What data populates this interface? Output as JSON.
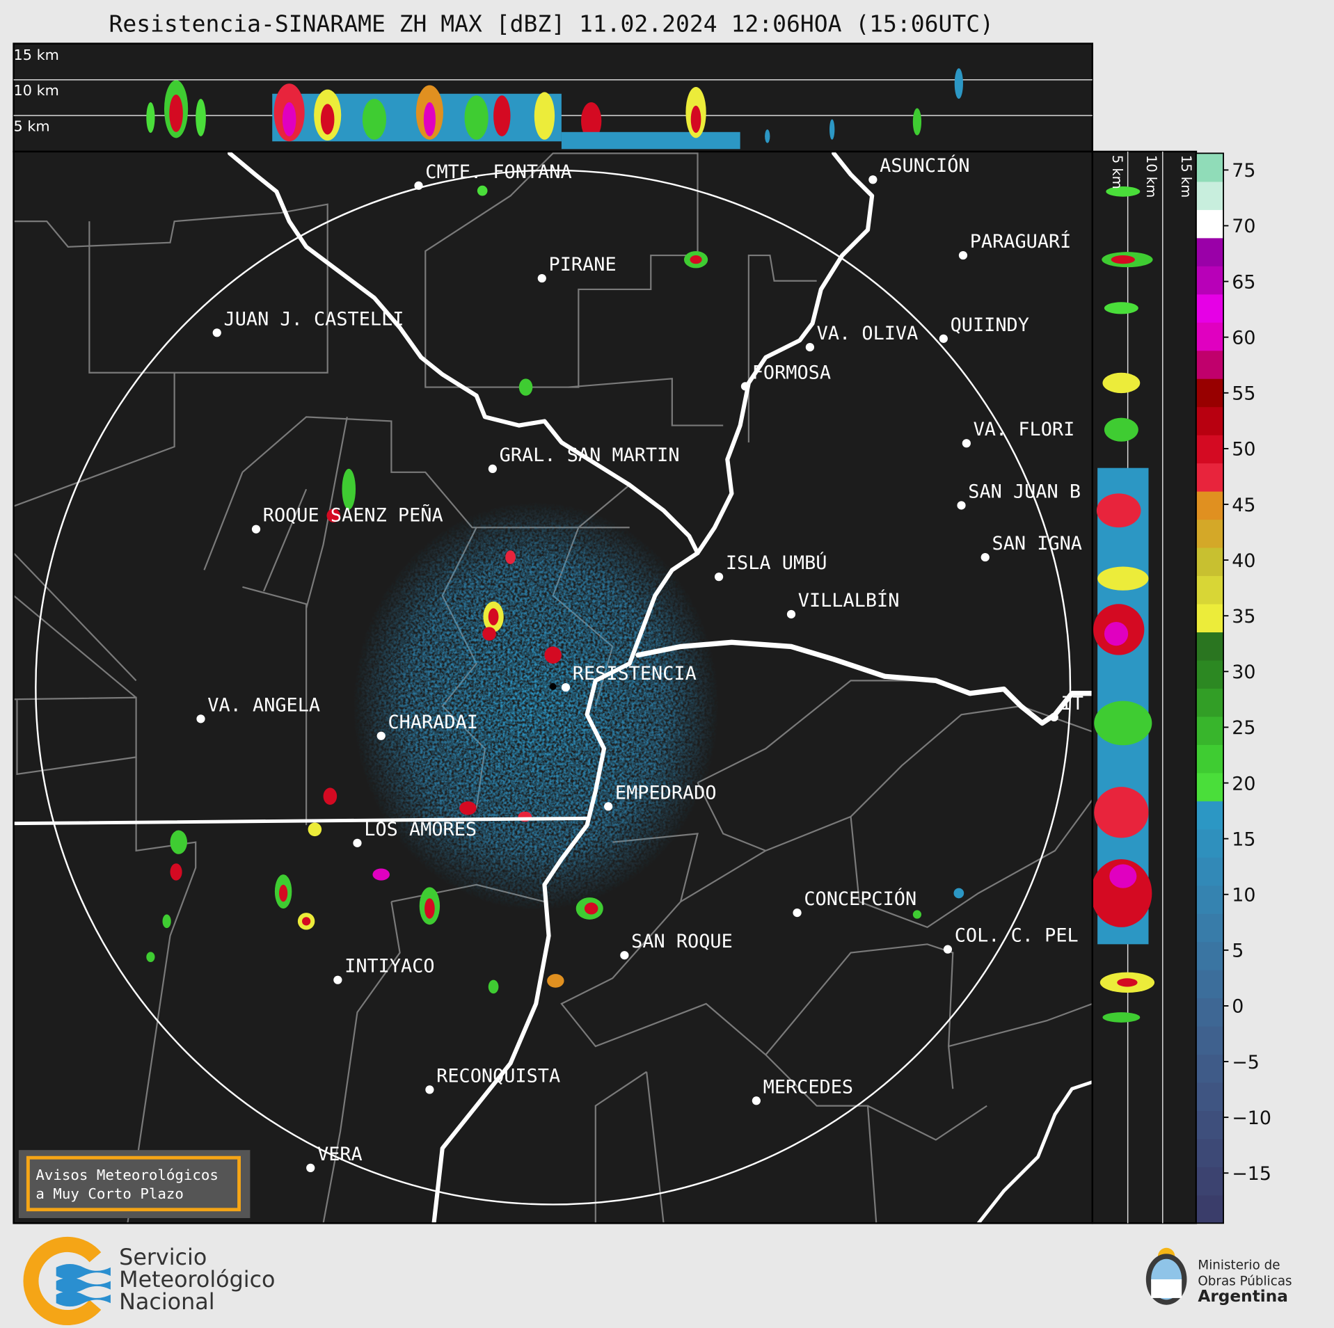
{
  "header": {
    "title": "Resistencia-SINARAME ZH MAX [dBZ] 11.02.2024 12:06HOA (15:06UTC)"
  },
  "top_profile": {
    "height_labels": [
      "15 km",
      "10 km",
      "5 km"
    ]
  },
  "side_profile": {
    "height_labels": [
      "5 km",
      "10 km",
      "15 km"
    ]
  },
  "map": {
    "cities": [
      "CMTE. FONTANA",
      "ASUNCIÓN",
      "PIRANE",
      "PARAGUARÍ",
      "JUAN J. CASTELLI",
      "VA. OLIVA",
      "QUIINDY",
      "FORMOSA",
      "VA. FLORI",
      "GRAL. SAN MARTIN",
      "SAN JUAN B",
      "ROQUE SAENZ PEÑA",
      "SAN IGNA",
      "ISLA UMBÚ",
      "VILLALBÍN",
      "RESISTENCIA",
      "VA. ANGELA",
      "CHARADAI",
      "IT",
      "EMPEDRADO",
      "LOS AMORES",
      "CONCEPCIÓN",
      "COL. C. PEL",
      "SAN ROQUE",
      "INTIYACO",
      "RECONQUISTA",
      "MERCEDES",
      "VERA"
    ]
  },
  "colorbar": {
    "lim": [
      -19.5,
      76.5
    ],
    "ticks": [
      75,
      70,
      65,
      60,
      55,
      50,
      45,
      40,
      35,
      30,
      25,
      20,
      15,
      10,
      5,
      0,
      {
        "value": -5,
        "label": "−5"
      },
      {
        "value": -10,
        "label": "−10"
      },
      {
        "value": -15,
        "label": "−15"
      }
    ],
    "colors": [
      "#3a3d6a",
      "#3c4370",
      "#3d4976",
      "#3e4f7c",
      "#3f5582",
      "#3f5b88",
      "#3f618e",
      "#3e6794",
      "#3c6e9b",
      "#3a75a2",
      "#387ca9",
      "#3583b0",
      "#3289b7",
      "#2f90bd",
      "#2c97c4",
      "#4ade3a",
      "#3fcc32",
      "#38b52c",
      "#329e26",
      "#2c8822",
      "#2a7520",
      "#ecec3a",
      "#d8d636",
      "#c8c030",
      "#d4a828",
      "#e09020",
      "#e8243c",
      "#d40a22",
      "#b80010",
      "#980000",
      "#c0006c",
      "#e000c0",
      "#e600e6",
      "#b800b8",
      "#9a00a8",
      "#ffffff",
      "#c8eedd",
      "#90dcb8"
    ]
  },
  "notice": {
    "lines": [
      "Avisos Meteorológicos",
      "a Muy Corto Plazo"
    ]
  },
  "footer": {
    "smn": [
      "Servicio",
      "Meteorológico",
      "Nacional"
    ],
    "ministry": [
      "Ministerio de",
      "Obras Públicas",
      "Argentina"
    ]
  }
}
